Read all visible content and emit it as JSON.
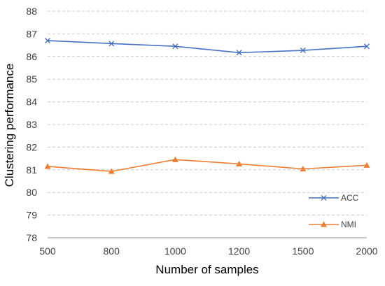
{
  "chart_data": {
    "type": "line",
    "categories": [
      "500",
      "800",
      "1000",
      "1200",
      "1500",
      "2000"
    ],
    "series": [
      {
        "name": "ACC",
        "values": [
          86.7,
          86.57,
          86.45,
          86.17,
          86.27,
          86.45
        ],
        "color": "#4472c4",
        "marker": "x"
      },
      {
        "name": "NMI",
        "values": [
          81.15,
          80.93,
          81.45,
          81.26,
          81.04,
          81.2
        ],
        "color": "#ed7d31",
        "marker": "triangle"
      }
    ],
    "title": "",
    "xlabel": "Number of samples",
    "ylabel": "Clustering  performance",
    "ylim": [
      78,
      88
    ],
    "yticks": [
      "78",
      "79",
      "80",
      "81",
      "82",
      "83",
      "84",
      "85",
      "86",
      "87",
      "88"
    ],
    "grid": "horizontal dashed",
    "legend": "bottom-right"
  }
}
